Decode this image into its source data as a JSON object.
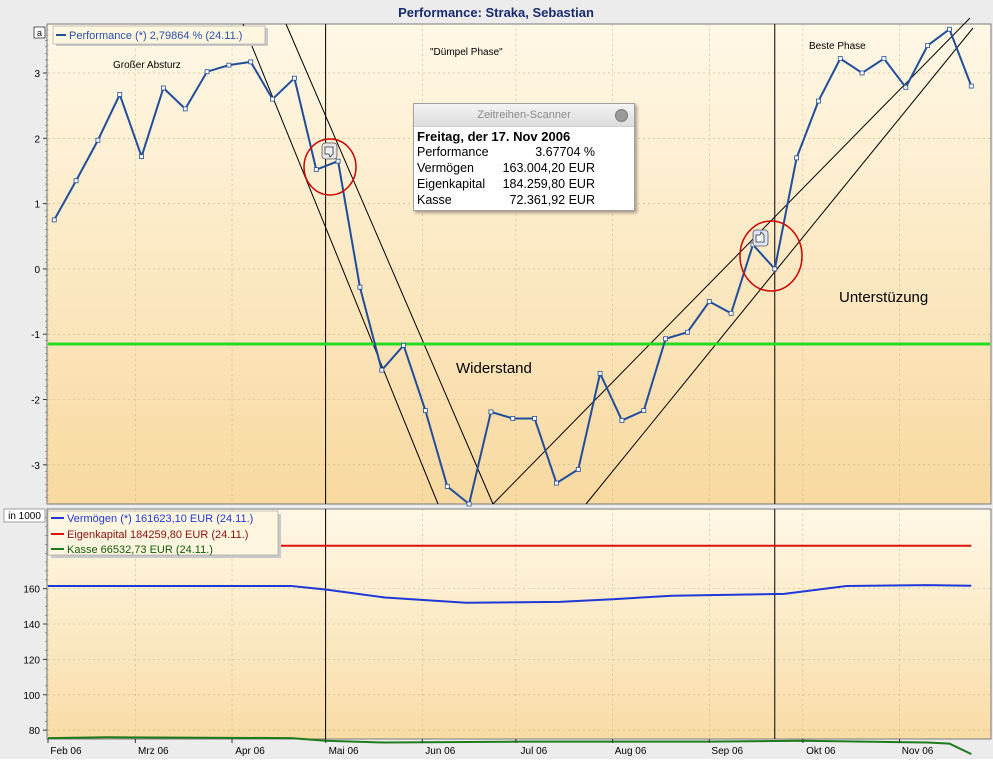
{
  "title": "Performance: Straka, Sebastian",
  "colors": {
    "background_top": "#fff7e4",
    "background_bottom": "#f7d79c",
    "performance_line": "#214d9a",
    "vermoegen_line": "#1f38d6",
    "eigenkapital_line": "#e01010",
    "kasse_line": "#1d7a1d",
    "resistance_line": "#22dd22",
    "circle": "#cc0000"
  },
  "top_panel": {
    "corner_button": "a",
    "legend": "Performance (*) 2,79864 % (24.11.)",
    "annotations": {
      "grosser_absturz": "Großer Absturz",
      "duempel_phase": "\"Dümpel Phase\"",
      "beste_phase": "Beste Phase",
      "widerstand": "Widerstand",
      "unterstuetzung": "Unterstüzung"
    },
    "y_ticks": [
      "3",
      "2",
      "1",
      "0",
      "-1",
      "-2",
      "-3"
    ]
  },
  "bottom_panel": {
    "unit_label": "in 1000",
    "legend": [
      "Vermögen (*) 161623,10 EUR (24.11.)",
      "Eigenkapital 184259,80 EUR (24.11.)",
      "Kasse 66532,73 EUR (24.11.)"
    ],
    "y_ticks": [
      "160",
      "140",
      "120",
      "100",
      "80"
    ]
  },
  "x_ticks": [
    "Feb 06",
    "Mrz 06",
    "Apr 06",
    "Mai 06",
    "Jun 06",
    "Jul 06",
    "Aug 06",
    "Sep 06",
    "Okt 06",
    "Nov 06"
  ],
  "tooltip": {
    "title": "Zeitreihen-Scanner",
    "date": "Freitag, der 17. Nov 2006",
    "rows": [
      {
        "key": "Performance",
        "value": "3.67704 %"
      },
      {
        "key": "Vermögen",
        "value": "163.004,20 EUR"
      },
      {
        "key": "Eigenkapital",
        "value": "184.259,80 EUR"
      },
      {
        "key": "Kasse",
        "value": "72.361,92 EUR"
      }
    ]
  },
  "chart_data": [
    {
      "type": "line",
      "title": "Performance: Straka, Sebastian",
      "xlabel": "",
      "ylabel": "",
      "ylim": [
        -3.6,
        3.75
      ],
      "x_tick_labels": [
        "Feb 06",
        "Mrz 06",
        "Apr 06",
        "Mai 06",
        "Jun 06",
        "Jul 06",
        "Aug 06",
        "Sep 06",
        "Okt 06",
        "Nov 06"
      ],
      "series": [
        {
          "name": "Performance (*) 2,79864 % (24.11.)",
          "x": [
            "2006-02-03",
            "2006-02-10",
            "2006-02-17",
            "2006-02-24",
            "2006-03-03",
            "2006-03-10",
            "2006-03-17",
            "2006-03-24",
            "2006-03-31",
            "2006-04-07",
            "2006-04-14",
            "2006-04-21",
            "2006-04-28",
            "2006-05-05",
            "2006-05-12",
            "2006-05-19",
            "2006-05-26",
            "2006-06-02",
            "2006-06-09",
            "2006-06-16",
            "2006-06-23",
            "2006-06-30",
            "2006-07-07",
            "2006-07-14",
            "2006-07-21",
            "2006-07-28",
            "2006-08-04",
            "2006-08-11",
            "2006-08-18",
            "2006-08-25",
            "2006-09-01",
            "2006-09-08",
            "2006-09-15",
            "2006-09-22",
            "2006-09-29",
            "2006-10-06",
            "2006-10-13",
            "2006-10-20",
            "2006-10-27",
            "2006-11-03",
            "2006-11-10",
            "2006-11-17",
            "2006-11-24"
          ],
          "values": [
            0.75,
            1.35,
            1.97,
            2.67,
            1.72,
            2.77,
            2.45,
            3.02,
            3.12,
            3.17,
            2.6,
            2.92,
            1.52,
            1.65,
            -0.28,
            -1.55,
            -1.17,
            -2.17,
            -3.33,
            -3.6,
            -2.19,
            -2.29,
            -2.29,
            -3.28,
            -3.07,
            -1.6,
            -2.32,
            -2.17,
            -1.07,
            -0.97,
            -0.5,
            -0.68,
            0.37,
            0.0,
            1.7,
            2.57,
            3.22,
            3.0,
            3.22,
            2.78,
            3.42,
            3.67,
            2.8
          ]
        }
      ],
      "overlays": {
        "horizontal_line_y": -1.15,
        "vertical_markers": [
          "2006-05-01",
          "2006-09-22"
        ]
      }
    },
    {
      "type": "line",
      "ylabel": "in 1000",
      "ylim": [
        75,
        205
      ],
      "x_tick_labels": [
        "Feb 06",
        "Mrz 06",
        "Apr 06",
        "Mai 06",
        "Jun 06",
        "Jul 06",
        "Aug 06",
        "Sep 06",
        "Okt 06",
        "Nov 06"
      ],
      "series": [
        {
          "name": "Vermögen (*) 161623,10 EUR (24.11.)",
          "x": [
            "2006-02-01",
            "2006-04-20",
            "2006-05-01",
            "2006-05-20",
            "2006-06-15",
            "2006-07-15",
            "2006-08-01",
            "2006-08-20",
            "2006-09-25",
            "2006-10-15",
            "2006-11-10",
            "2006-11-24"
          ],
          "values": [
            161.5,
            161.5,
            159.5,
            155,
            152,
            152.5,
            154,
            156,
            157,
            161.5,
            162,
            161.6
          ]
        },
        {
          "name": "Eigenkapital 184259,80 EUR (24.11.)",
          "x": [
            "2006-02-01",
            "2006-11-24"
          ],
          "values": [
            184.26,
            184.26
          ]
        },
        {
          "name": "Kasse 66532,73 EUR (24.11.)",
          "x": [
            "2006-02-01",
            "2006-02-20",
            "2006-04-20",
            "2006-05-01",
            "2006-05-20",
            "2006-07-01",
            "2006-09-01",
            "2006-10-01",
            "2006-11-10",
            "2006-11-17",
            "2006-11-24"
          ],
          "values": [
            75.5,
            76,
            75.5,
            74,
            73,
            73.5,
            73.5,
            74,
            73,
            72.4,
            66.5
          ]
        }
      ]
    }
  ]
}
